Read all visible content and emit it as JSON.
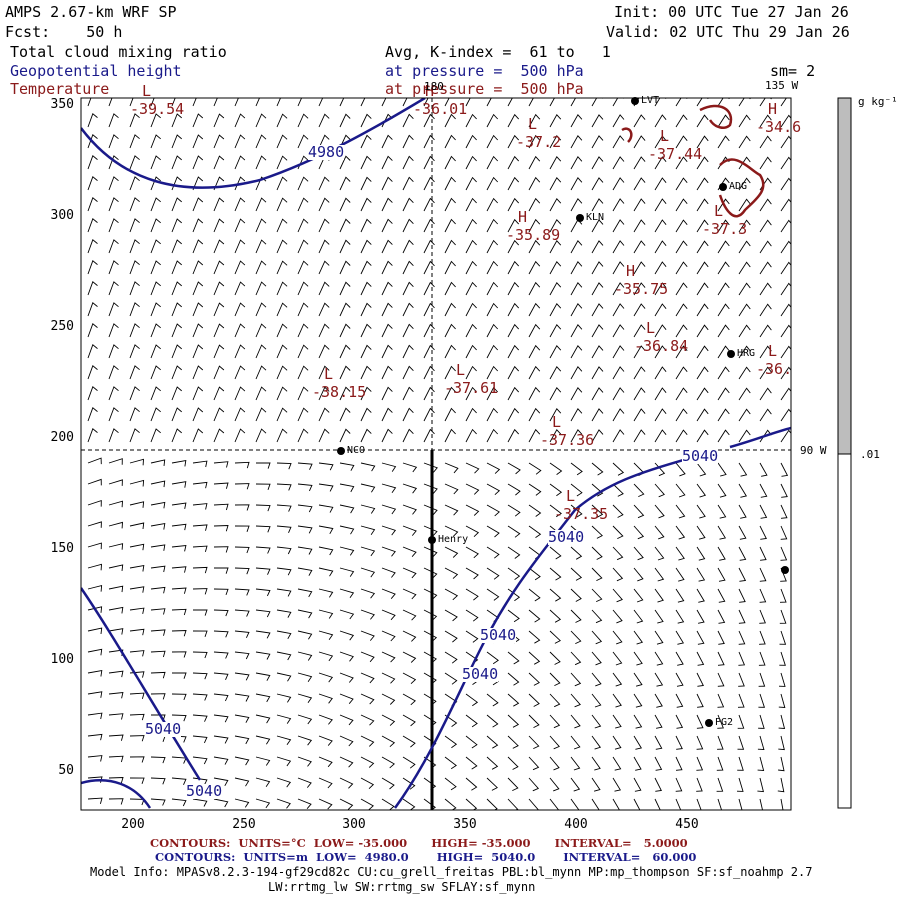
{
  "header": {
    "model": "AMPS 2.67-km WRF SP",
    "forecast": "Fcst:    50 h",
    "init": "Init: 00 UTC Tue 27 Jan 26",
    "valid": "Valid: 02 UTC Thu 29 Jan 26",
    "field1": "Total cloud mixing ratio",
    "field2": "Geopotential height",
    "field3": "Temperature",
    "avg": "Avg, K-index =  61 to   1",
    "pressure1": "at pressure =  500 hPa",
    "pressure2": "at pressure =  500 hPa",
    "sm": "sm= 2"
  },
  "map": {
    "x_ticks": [
      "200",
      "250",
      "300",
      "350",
      "400",
      "450"
    ],
    "y_ticks": [
      "50",
      "100",
      "150",
      "200",
      "250",
      "300",
      "350"
    ],
    "lon_labels": {
      "top": "180",
      "right_top": "135 W",
      "right_mid": "90 W"
    },
    "colors": {
      "height": "#1a1a8a",
      "temperature": "#8b1a1a",
      "barb": "#000000"
    },
    "height_contours": [
      {
        "label": "4980"
      },
      {
        "label": "5040"
      },
      {
        "label": "5040"
      },
      {
        "label": "5040"
      },
      {
        "label": "5040"
      },
      {
        "label": "5040"
      },
      {
        "label": "5040"
      }
    ],
    "temp_extrema": [
      {
        "type": "L",
        "value": "-39.54"
      },
      {
        "type": "H",
        "value": "-36.01"
      },
      {
        "type": "L",
        "value": "-37.2"
      },
      {
        "type": "L",
        "value": "-37.44"
      },
      {
        "type": "H",
        "value": "-34.6"
      },
      {
        "type": "L",
        "value": "-37.3"
      },
      {
        "type": "H",
        "value": "-35.89"
      },
      {
        "type": "H",
        "value": "-35.75"
      },
      {
        "type": "L",
        "value": "-36.84"
      },
      {
        "type": "L",
        "value": "-36."
      },
      {
        "type": "L",
        "value": "-38.15"
      },
      {
        "type": "L",
        "value": "-37.61"
      },
      {
        "type": "L",
        "value": "-37.36"
      },
      {
        "type": "L",
        "value": "-37.35"
      }
    ],
    "stations": [
      "NCO",
      "Henry",
      "KLN",
      "ADG",
      "HRG",
      "PG2",
      "LVT",
      ""
    ]
  },
  "colorbar": {
    "unit": "g kg⁻¹",
    "value": ".01"
  },
  "footer": {
    "temp_contours": "CONTOURS:  UNITS=°C  LOW= -35.000      HIGH= -35.000      INTERVAL=   5.0000",
    "height_contours": "CONTOURS:  UNITS=m  LOW=  4980.0       HIGH=  5040.0       INTERVAL=   60.000",
    "model_info": "Model Info: MPASv8.2.3-194-gf29cd82c CU:cu_grell_freitas PBL:bl_mynn MP:mp_thompson SF:sf_noahmp 2.7",
    "model_info2": "LW:rrtmg_lw SW:rrtmg_sw SFLAY:sf_mynn"
  }
}
